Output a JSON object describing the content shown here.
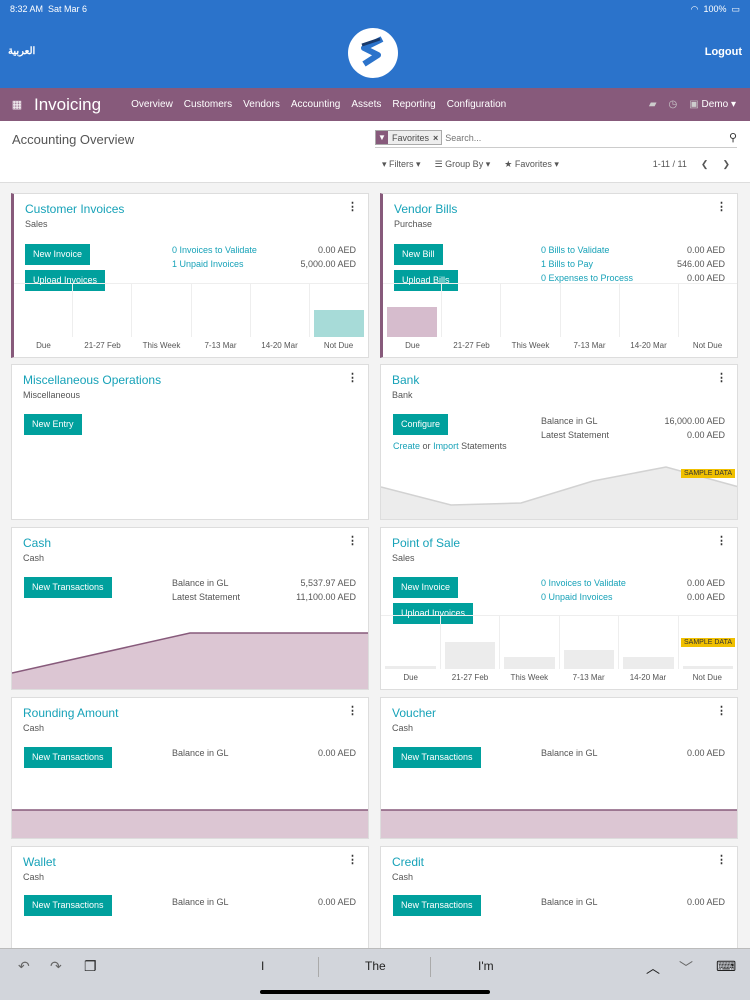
{
  "status": {
    "time": "8:32 AM",
    "date": "Sat Mar 6",
    "battery": "100%"
  },
  "header": {
    "arabic": "العربية",
    "logout": "Logout"
  },
  "navbar": {
    "app_title": "Invoicing",
    "menus": [
      "Overview",
      "Customers",
      "Vendors",
      "Accounting",
      "Assets",
      "Reporting",
      "Configuration"
    ],
    "user": "Demo"
  },
  "control": {
    "breadcrumb": "Accounting Overview",
    "facet": "Favorites",
    "search_placeholder": "Search...",
    "filters": "Filters",
    "group_by": "Group By",
    "favorites": "Favorites",
    "pager": "1-11 / 11"
  },
  "cards": {
    "customer_invoices": {
      "title": "Customer Invoices",
      "sub": "Sales",
      "btn1": "New Invoice",
      "btn2": "Upload Invoices",
      "l1": "0 Invoices to Validate",
      "v1": "0.00 AED",
      "l2": "1 Unpaid Invoices",
      "v2": "5,000.00 AED",
      "axis": [
        "Due",
        "21-27 Feb",
        "This Week",
        "7-13 Mar",
        "14-20 Mar",
        "Not Due"
      ]
    },
    "vendor_bills": {
      "title": "Vendor Bills",
      "sub": "Purchase",
      "btn1": "New Bill",
      "btn2": "Upload Bills",
      "l1": "0 Bills to Validate",
      "v1": "0.00 AED",
      "l2": "1 Bills to Pay",
      "v2": "546.00 AED",
      "l3": "0 Expenses to Process",
      "v3": "0.00 AED",
      "axis": [
        "Due",
        "21-27 Feb",
        "This Week",
        "7-13 Mar",
        "14-20 Mar",
        "Not Due"
      ]
    },
    "misc": {
      "title": "Miscellaneous Operations",
      "sub": "Miscellaneous",
      "btn1": "New Entry"
    },
    "bank": {
      "title": "Bank",
      "sub": "Bank",
      "btn1": "Configure",
      "create": "Create",
      "or": "or",
      "import": "Import",
      "statements": "Statements",
      "l1": "Balance in GL",
      "v1": "16,000.00 AED",
      "l2": "Latest Statement",
      "v2": "0.00 AED",
      "sample": "SAMPLE DATA"
    },
    "cash": {
      "title": "Cash",
      "sub": "Cash",
      "btn1": "New Transactions",
      "l1": "Balance in GL",
      "v1": "5,537.97 AED",
      "l2": "Latest Statement",
      "v2": "11,100.00 AED"
    },
    "pos": {
      "title": "Point of Sale",
      "sub": "Sales",
      "btn1": "New Invoice",
      "btn2": "Upload Invoices",
      "l1": "0 Invoices to Validate",
      "v1": "0.00 AED",
      "l2": "0 Unpaid Invoices",
      "v2": "0.00 AED",
      "sample": "SAMPLE DATA",
      "axis": [
        "Due",
        "21-27 Feb",
        "This Week",
        "7-13 Mar",
        "14-20 Mar",
        "Not Due"
      ]
    },
    "rounding": {
      "title": "Rounding Amount",
      "sub": "Cash",
      "btn1": "New Transactions",
      "l1": "Balance in GL",
      "v1": "0.00 AED"
    },
    "voucher": {
      "title": "Voucher",
      "sub": "Cash",
      "btn1": "New Transactions",
      "l1": "Balance in GL",
      "v1": "0.00 AED"
    },
    "wallet": {
      "title": "Wallet",
      "sub": "Cash",
      "btn1": "New Transactions",
      "l1": "Balance in GL",
      "v1": "0.00 AED"
    },
    "credit": {
      "title": "Credit",
      "sub": "Cash",
      "btn1": "New Transactions",
      "l1": "Balance in GL",
      "v1": "0.00 AED"
    }
  },
  "keyboard": {
    "suggestions": [
      "I",
      "The",
      "I'm"
    ]
  },
  "colors": {
    "brand_blue": "#2b73cb",
    "odoo_purple": "#875a7b",
    "teal_button": "#00a09d",
    "link": "#17a2b8"
  }
}
